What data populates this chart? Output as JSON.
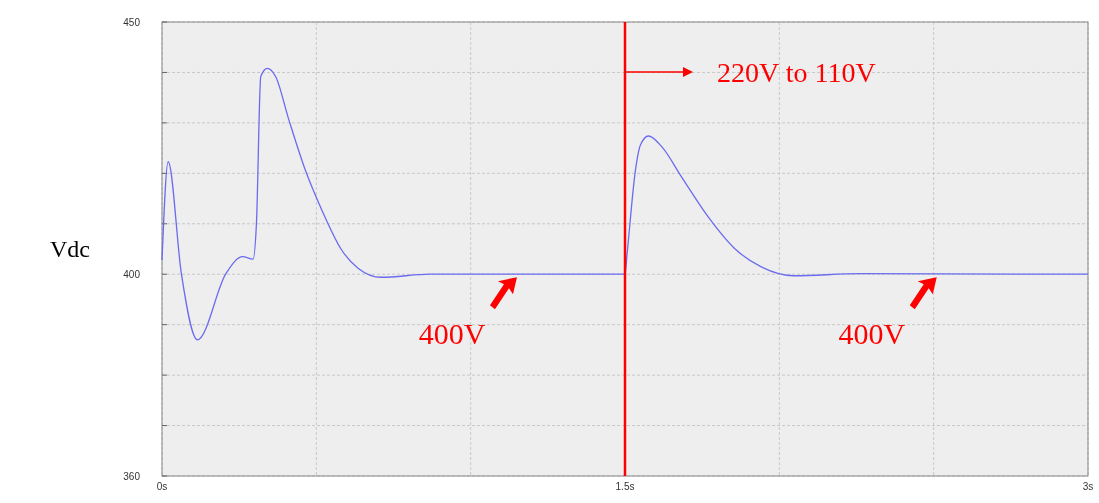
{
  "chart_data": {
    "type": "line",
    "ylabel": "Vdc",
    "series": [
      {
        "color": "#6b6bef",
        "x": [
          0,
          0.02,
          0.063,
          0.115,
          0.208,
          0.261,
          0.295,
          0.306,
          0.32,
          0.341,
          0.368,
          0.411,
          0.464,
          0.518,
          0.582,
          0.635,
          0.71,
          0.87,
          1.5,
          1.507,
          1.534,
          1.55,
          1.576,
          1.619,
          1.683,
          1.769,
          1.855,
          1.94,
          2.047,
          2.261,
          3
        ],
        "values": [
          402.8,
          422.3,
          400,
          387,
          400.2,
          403.5,
          403,
          410.1,
          439.2,
          440.8,
          439.2,
          430.6,
          420.7,
          412.7,
          404.8,
          401.2,
          399.4,
          400,
          400,
          404.2,
          420.7,
          425.6,
          427.4,
          425.3,
          419.3,
          411.4,
          405.1,
          401.5,
          399.7,
          400.1,
          400
        ]
      }
    ],
    "xlim": [
      0,
      3
    ],
    "ylim": [
      360,
      450
    ],
    "xticks": [
      {
        "value": 0,
        "label": "0s"
      },
      {
        "value": 0.5,
        "label": null
      },
      {
        "value": 1,
        "label": null
      },
      {
        "value": 1.5,
        "label": "1.5s"
      },
      {
        "value": 2,
        "label": null
      },
      {
        "value": 2.5,
        "label": null
      },
      {
        "value": 3,
        "label": "3s"
      }
    ],
    "yticks": [
      360,
      {
        "value": 370,
        "label": null
      },
      {
        "value": 380,
        "label": null
      },
      {
        "value": 390,
        "label": null
      },
      400,
      {
        "value": 410,
        "label": null
      },
      {
        "value": 420,
        "label": null
      },
      {
        "value": 430,
        "label": null
      },
      {
        "value": 440,
        "label": null
      },
      450
    ],
    "grid": true,
    "line_style": "solid",
    "marker": "none",
    "ref_lines": [
      {
        "axis": "x",
        "value": 1.5,
        "label": "220V to 110V",
        "color": "#ff0000"
      }
    ],
    "annotations": [
      {
        "text": "400V",
        "x": 1.15,
        "y": 400
      },
      {
        "text": "400V",
        "x": 2.51,
        "y": 400
      }
    ]
  }
}
